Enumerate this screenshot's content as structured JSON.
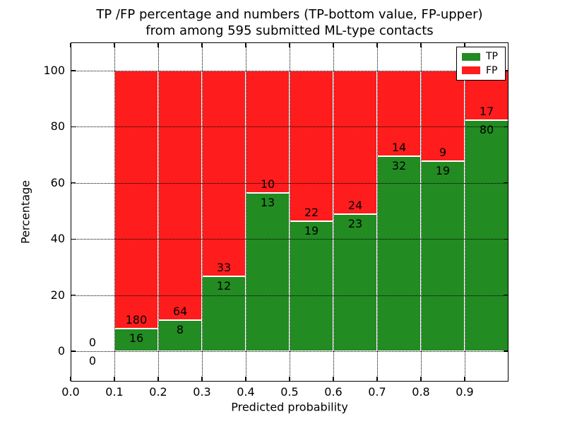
{
  "figure": {
    "title_line1": "TP /FP percentage and numbers (TP-bottom value, FP-upper)",
    "title_line2": "from among 595 submitted ML-type contacts"
  },
  "chart_data": {
    "type": "bar",
    "subtype": "stacked-100-percent",
    "title": "TP /FP percentage and numbers (TP-bottom value, FP-upper)\nfrom among 595 submitted ML-type contacts",
    "xlabel": "Predicted probability",
    "ylabel": "Percentage",
    "total_contacts": 595,
    "grid": "dotted-black-on",
    "xlim": [
      0.0,
      1.0
    ],
    "ylim": [
      -10.8,
      110.1
    ],
    "x_tick_labels": [
      "0.0",
      "0.1",
      "0.2",
      "0.3",
      "0.4",
      "0.5",
      "0.6",
      "0.7",
      "0.8",
      "0.9"
    ],
    "y_tick_values": [
      0,
      20,
      40,
      60,
      80,
      100
    ],
    "y_tick_labels": [
      "0",
      "20",
      "40",
      "60",
      "80",
      "100"
    ],
    "categories": [
      "0.0-0.1",
      "0.1-0.2",
      "0.2-0.3",
      "0.3-0.4",
      "0.4-0.5",
      "0.5-0.6",
      "0.6-0.7",
      "0.7-0.8",
      "0.8-0.9",
      "0.9-1.0"
    ],
    "series": [
      {
        "name": "TP",
        "color": "#228b22",
        "values": [
          0,
          16,
          8,
          12,
          13,
          19,
          23,
          32,
          19,
          80
        ]
      },
      {
        "name": "FP",
        "color": "#ff1c1c",
        "values": [
          0,
          180,
          64,
          33,
          10,
          22,
          24,
          14,
          9,
          17
        ]
      }
    ],
    "bar_edge_color": "#ffffff",
    "legend": {
      "position": "upper right",
      "entries": [
        {
          "label": "TP",
          "color": "#228b22"
        },
        {
          "label": "FP",
          "color": "#ff1c1c"
        }
      ]
    }
  }
}
